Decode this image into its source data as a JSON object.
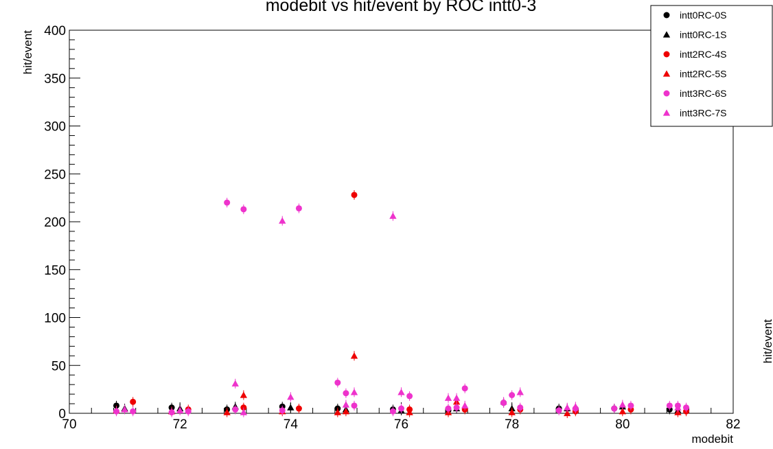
{
  "chart_data": {
    "type": "scatter",
    "title": "modebit vs hit/event by ROC intt0-3",
    "xlabel": "modebit",
    "ylabel": "hit/event",
    "ylabel_right": "hit/event",
    "xlim": [
      70,
      82
    ],
    "ylim": [
      0,
      400
    ],
    "x_ticks": [
      "70",
      "72",
      "74",
      "76",
      "78",
      "80",
      "82"
    ],
    "y_ticks": [
      "0",
      "50",
      "100",
      "150",
      "200",
      "250",
      "300",
      "350",
      "400"
    ],
    "legend_position": "top-right",
    "grid": false,
    "series": [
      {
        "name": "intt0RC-0S",
        "marker": "circle",
        "color": "#000000",
        "x": [
          70.85,
          71.85,
          72.85,
          73.85,
          74.85,
          75.85,
          76.85,
          77.85,
          78.85,
          79.85,
          80.85
        ],
        "y": [
          8,
          6,
          4,
          7,
          5,
          4,
          3,
          11,
          5,
          5,
          4
        ]
      },
      {
        "name": "intt0RC-1S",
        "marker": "triangle",
        "color": "#000000",
        "x": [
          71.0,
          72.0,
          73.0,
          74.0,
          75.0,
          76.0,
          77.0,
          78.0,
          79.0,
          80.0,
          81.0
        ],
        "y": [
          5,
          5,
          7,
          6,
          4,
          3,
          5,
          5,
          5,
          7,
          3
        ]
      },
      {
        "name": "intt2RC-4S",
        "marker": "circle",
        "color": "#ee0000",
        "x": [
          71.15,
          72.15,
          73.15,
          74.15,
          75.15,
          76.15,
          77.15,
          78.15,
          79.15,
          80.15,
          81.15
        ],
        "y": [
          12,
          4,
          6,
          5,
          228,
          4,
          4,
          4,
          2,
          4,
          2
        ]
      },
      {
        "name": "intt2RC-5S",
        "marker": "triangle",
        "color": "#ee0000",
        "x": [
          70.85,
          71.85,
          72.85,
          73.15,
          73.85,
          74.85,
          75.0,
          75.15,
          76.15,
          76.85,
          77.0,
          78.0,
          79.0,
          80.0,
          81.0
        ],
        "y": [
          3,
          2,
          1,
          19,
          2,
          1,
          2,
          60,
          1,
          1,
          12,
          1,
          0,
          2,
          1
        ]
      },
      {
        "name": "intt3RC-6S",
        "marker": "circle",
        "color": "#ee33cc",
        "x": [
          70.85,
          71.15,
          71.85,
          72.15,
          72.85,
          73.0,
          73.15,
          73.85,
          74.15,
          74.85,
          75.0,
          75.15,
          75.85,
          76.0,
          76.15,
          76.85,
          77.0,
          77.15,
          77.85,
          78.0,
          78.15,
          78.85,
          79.15,
          79.85,
          80.15,
          80.85,
          81.0,
          81.15
        ],
        "y": [
          2,
          2,
          1,
          2,
          220,
          4,
          213,
          3,
          214,
          32,
          21,
          8,
          2,
          5,
          18,
          5,
          6,
          26,
          11,
          19,
          6,
          3,
          5,
          5,
          8,
          8,
          8,
          6
        ]
      },
      {
        "name": "intt3RC-7S",
        "marker": "triangle",
        "color": "#ee33cc",
        "x": [
          71.0,
          72.0,
          73.0,
          73.15,
          73.85,
          74.0,
          75.0,
          75.15,
          75.85,
          76.0,
          76.85,
          77.0,
          77.15,
          77.85,
          78.15,
          79.0,
          79.15,
          80.0,
          81.0
        ],
        "y": [
          4,
          3,
          31,
          1,
          201,
          17,
          9,
          22,
          206,
          22,
          16,
          16,
          8,
          12,
          22,
          6,
          7,
          9,
          6
        ]
      }
    ]
  }
}
